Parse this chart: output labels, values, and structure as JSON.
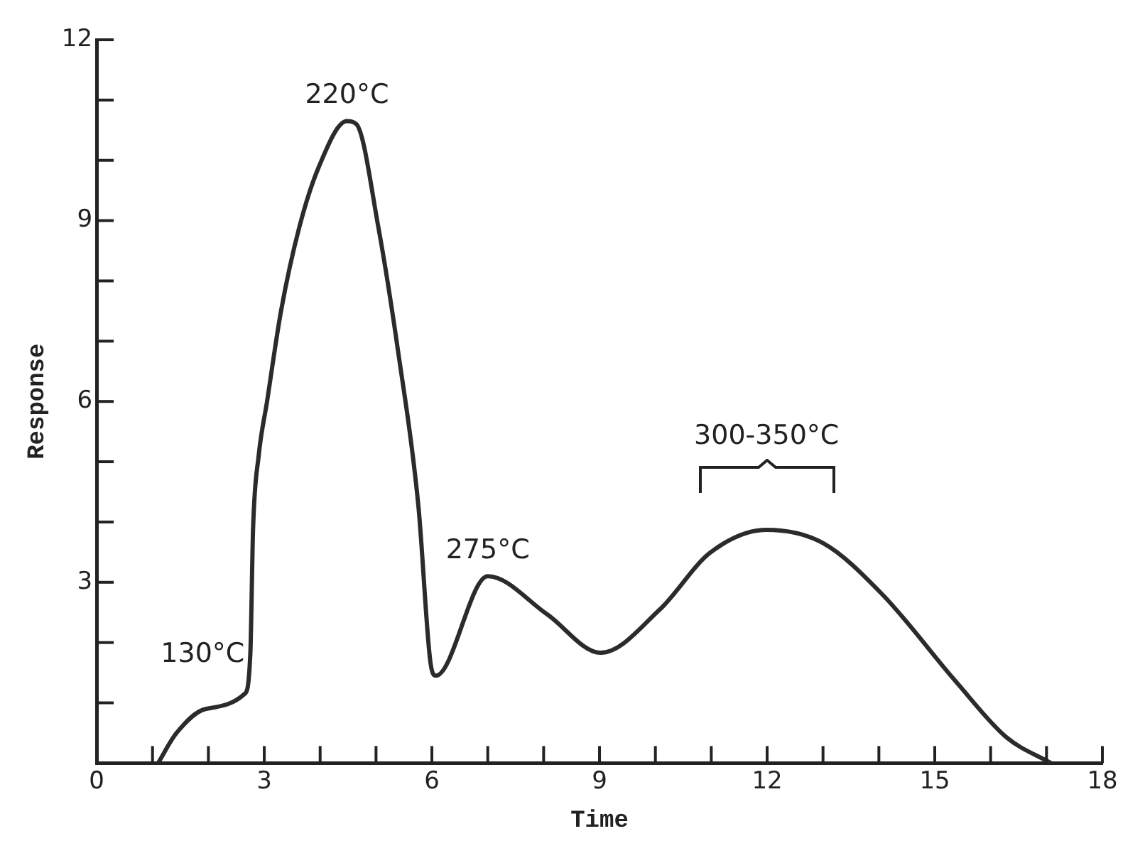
{
  "chart_data": {
    "type": "line",
    "xlabel": "Time",
    "ylabel": "Response",
    "x": [
      1.1,
      1.43,
      1.96,
      2.65,
      2.75,
      2.8,
      2.9,
      3.05,
      3.3,
      3.63,
      3.98,
      4.48,
      4.65,
      5.04,
      5.4,
      5.76,
      5.97,
      6.07,
      7.0,
      8.06,
      9.02,
      10.08,
      10.98,
      11.99,
      13.0,
      14.06,
      15.38,
      16.28,
      17.08
    ],
    "series": [
      {
        "color": "#2b2b2b",
        "values": [
          0,
          0.5,
          0.9,
          1.15,
          1.8,
          3.9,
          5.1,
          6.0,
          7.5,
          8.9,
          9.9,
          10.65,
          10.6,
          8.9,
          6.8,
          4.25,
          1.7,
          1.45,
          3.1,
          2.47,
          1.83,
          2.55,
          3.49,
          3.87,
          3.65,
          2.8,
          1.35,
          0.43,
          0
        ]
      }
    ],
    "xlim": [
      0,
      18
    ],
    "xticks": [
      0,
      {
        "value": 1,
        "label": null
      },
      {
        "value": 2,
        "label": null
      },
      3,
      {
        "value": 4,
        "label": null
      },
      {
        "value": 5,
        "label": null
      },
      6,
      {
        "value": 7,
        "label": null
      },
      {
        "value": 8,
        "label": null
      },
      9,
      {
        "value": 10,
        "label": null
      },
      {
        "value": 11,
        "label": null
      },
      12,
      {
        "value": 13,
        "label": null
      },
      {
        "value": 14,
        "label": null
      },
      15,
      {
        "value": 16,
        "label": null
      },
      {
        "value": 17,
        "label": null
      },
      18
    ],
    "ylim": [
      0,
      12
    ],
    "yticks": [
      {
        "value": 1,
        "label": null
      },
      {
        "value": 2,
        "label": null
      },
      3,
      {
        "value": 4,
        "label": null
      },
      {
        "value": 5,
        "label": null
      },
      6,
      {
        "value": 7,
        "label": null
      },
      {
        "value": 8,
        "label": null
      },
      9,
      {
        "value": 10,
        "label": null
      },
      {
        "value": 11,
        "label": null
      },
      12
    ],
    "grid": false,
    "legend": false,
    "marker": "none",
    "line_style": "solid",
    "annotations": [
      {
        "text": "130°C",
        "x": 2.75,
        "y": 1.8
      },
      {
        "text": "220°C",
        "x": 4.48,
        "y": 10.65
      },
      {
        "text": "275°C",
        "x": 7.0,
        "y": 3.1
      },
      {
        "text": "300-350°C",
        "x": 11.99,
        "y": 3.87
      }
    ]
  }
}
